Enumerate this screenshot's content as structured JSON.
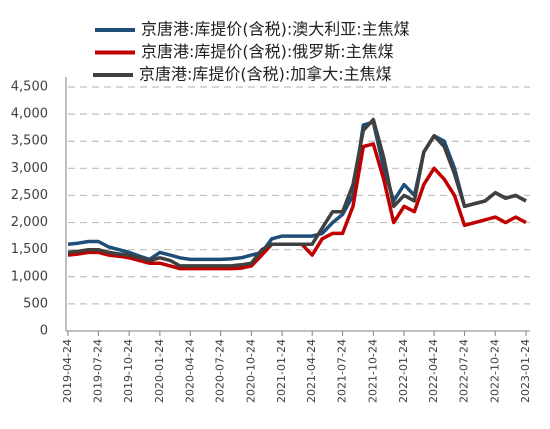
{
  "chart_data": {
    "type": "line",
    "x": [
      "2019-04-24",
      "2019-05-24",
      "2019-06-24",
      "2019-07-24",
      "2019-08-24",
      "2019-09-24",
      "2019-10-24",
      "2019-11-24",
      "2019-12-24",
      "2020-01-24",
      "2020-02-24",
      "2020-03-24",
      "2020-04-24",
      "2020-05-24",
      "2020-06-24",
      "2020-07-24",
      "2020-08-24",
      "2020-09-24",
      "2020-10-24",
      "2020-11-24",
      "2020-12-24",
      "2021-01-24",
      "2021-02-24",
      "2021-03-24",
      "2021-04-24",
      "2021-05-24",
      "2021-06-24",
      "2021-07-24",
      "2021-08-24",
      "2021-09-24",
      "2021-10-24",
      "2021-11-24",
      "2021-12-24",
      "2022-01-24",
      "2022-02-24",
      "2022-03-24",
      "2022-04-24",
      "2022-05-24",
      "2022-06-24",
      "2022-07-24",
      "2022-08-24",
      "2022-09-24",
      "2022-10-24",
      "2022-11-24",
      "2022-12-24",
      "2023-01-24"
    ],
    "series": [
      {
        "name": "京唐港:库提价(含税):澳大利亚:主焦煤",
        "color": "#1f4e79",
        "values": [
          1600,
          1620,
          1650,
          1650,
          1550,
          1500,
          1450,
          1380,
          1320,
          1450,
          1400,
          1350,
          1320,
          1320,
          1320,
          1320,
          1330,
          1350,
          1400,
          1450,
          1700,
          1750,
          1750,
          1750,
          1750,
          1800,
          2000,
          2150,
          2500,
          3800,
          3850,
          3000,
          2400,
          2700,
          2500,
          3300,
          3600,
          3500,
          3000,
          2300,
          2350,
          2400,
          2550,
          2450,
          2500,
          2400
        ]
      },
      {
        "name": "京唐港:库提价(含税):俄罗斯:主焦煤",
        "color": "#c00000",
        "values": [
          1400,
          1420,
          1450,
          1450,
          1400,
          1380,
          1350,
          1300,
          1250,
          1250,
          1200,
          1150,
          1150,
          1150,
          1150,
          1150,
          1150,
          1160,
          1200,
          1400,
          1600,
          1600,
          1600,
          1600,
          1400,
          1700,
          1800,
          1800,
          2300,
          3400,
          3450,
          2800,
          2000,
          2300,
          2200,
          2700,
          3000,
          2800,
          2500,
          1950,
          2000,
          2050,
          2100,
          2000,
          2100,
          2000
        ]
      },
      {
        "name": "京唐港:库提价(含税):加拿大:主焦煤",
        "color": "#404040",
        "values": [
          1450,
          1470,
          1500,
          1500,
          1450,
          1420,
          1400,
          1350,
          1300,
          1350,
          1300,
          1200,
          1200,
          1200,
          1200,
          1200,
          1200,
          1220,
          1250,
          1500,
          1600,
          1600,
          1600,
          1600,
          1600,
          1900,
          2200,
          2200,
          2700,
          3700,
          3900,
          3200,
          2300,
          2500,
          2400,
          3300,
          3600,
          3400,
          2900,
          2300,
          2350,
          2400,
          2550,
          2450,
          2500,
          2400
        ]
      }
    ],
    "xlim": [
      "2019-04-24",
      "2023-01-24"
    ],
    "xticks": [
      "2019-04-24",
      "2019-07-24",
      "2019-10-24",
      "2020-01-24",
      "2020-04-24",
      "2020-07-24",
      "2020-10-24",
      "2021-01-24",
      "2021-04-24",
      "2021-07-24",
      "2021-10-24",
      "2022-01-24",
      "2022-04-24",
      "2022-07-24",
      "2022-10-24",
      "2023-01-24"
    ],
    "ylim": [
      0,
      4500
    ],
    "yticks": [
      0,
      500,
      {
        "value": 1000,
        "label": "1,000"
      },
      {
        "value": 1500,
        "label": "1,500"
      },
      {
        "value": 2000,
        "label": "2,000"
      },
      {
        "value": 2500,
        "label": "2,500"
      },
      {
        "value": 3000,
        "label": "3,000"
      },
      {
        "value": 3500,
        "label": "3,500"
      },
      {
        "value": 4000,
        "label": "4,000"
      },
      {
        "value": 4500,
        "label": "4,500"
      }
    ],
    "grid": true
  }
}
